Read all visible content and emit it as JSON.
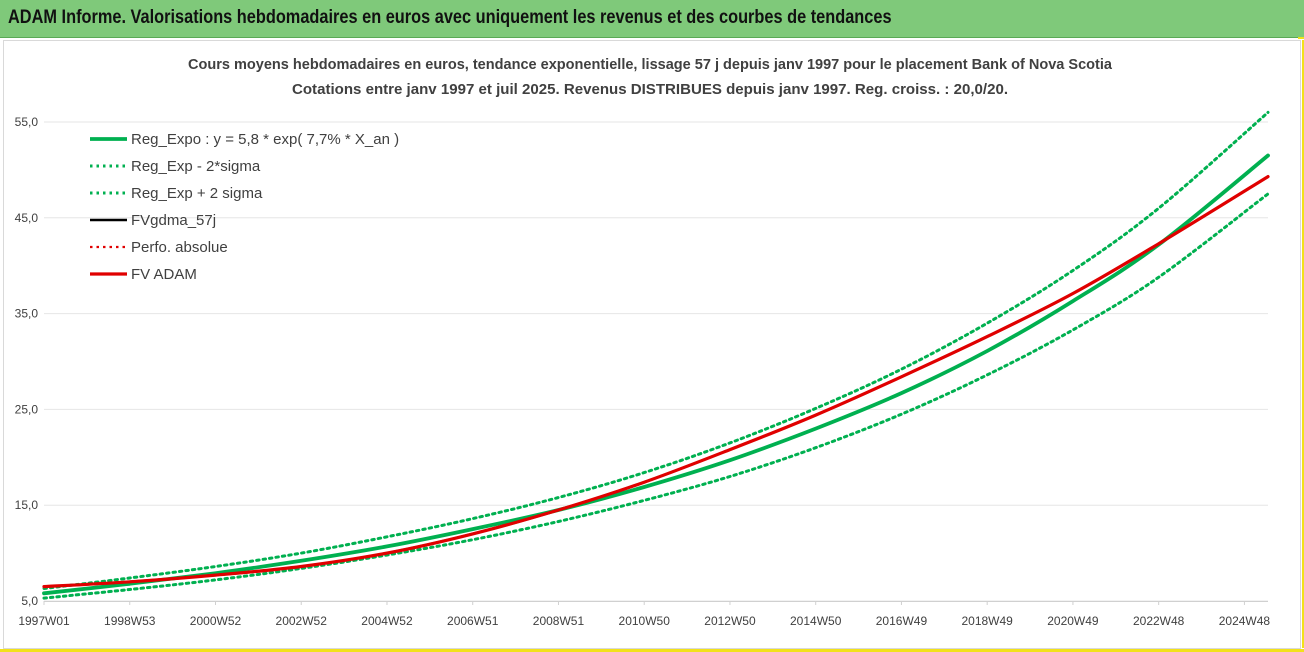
{
  "header": {
    "title": "ADAM Informe. Valorisations hebdomadaires en euros avec uniquement les revenus et des courbes de tendances"
  },
  "colors": {
    "header_bg": "#7fc97a",
    "accent_yellow": "#f2e11a",
    "green": "#00b050",
    "red": "#e00000",
    "black": "#000000",
    "grid": "#e6e6e6"
  },
  "chart_data": {
    "type": "line",
    "title": "Cours moyens hebdomadaires en euros, tendance exponentielle, lissage 57 j depuis janv 1997 pour le placement Bank of Nova Scotia",
    "subtitle": "Cotations entre janv 1997 et juil 2025. Revenus DISTRIBUES depuis janv 1997. Reg. croiss. : 20,0/20.",
    "xlabel": "",
    "ylabel": "",
    "x_range": [
      1997.0,
      2025.55
    ],
    "ylim": [
      5.0,
      55.0
    ],
    "y_ticks": [
      "5,0",
      "15,0",
      "25,0",
      "35,0",
      "45,0",
      "55,0"
    ],
    "x_ticks": [
      {
        "label": "1997W01",
        "year": 1997.0
      },
      {
        "label": "1998W53",
        "year": 1999.0
      },
      {
        "label": "2000W52",
        "year": 2001.0
      },
      {
        "label": "2002W52",
        "year": 2003.0
      },
      {
        "label": "2004W52",
        "year": 2005.0
      },
      {
        "label": "2006W51",
        "year": 2007.0
      },
      {
        "label": "2008W51",
        "year": 2009.0
      },
      {
        "label": "2010W50",
        "year": 2011.0
      },
      {
        "label": "2012W50",
        "year": 2013.0
      },
      {
        "label": "2014W50",
        "year": 2015.0
      },
      {
        "label": "2016W49",
        "year": 2017.0
      },
      {
        "label": "2018W49",
        "year": 2019.0
      },
      {
        "label": "2020W49",
        "year": 2021.0
      },
      {
        "label": "2022W48",
        "year": 2023.0
      },
      {
        "label": "2024W48",
        "year": 2025.0
      }
    ],
    "legend_position": "top-left",
    "grid": true,
    "series": [
      {
        "name": "Reg_Expo : y = 5,8 * exp( 7,7% *  X_an )",
        "style": "solid",
        "color": "#00b050",
        "x": [
          1997,
          1999,
          2001,
          2003,
          2005,
          2007,
          2009,
          2011,
          2013,
          2015,
          2017,
          2019,
          2021,
          2023,
          2025.55
        ],
        "values": [
          5.8,
          6.8,
          7.9,
          9.2,
          10.7,
          12.5,
          14.5,
          16.9,
          19.7,
          23.0,
          26.7,
          31.1,
          36.3,
          42.2,
          51.5
        ]
      },
      {
        "name": "Reg_Exp - 2*sigma",
        "style": "dotted",
        "color": "#00b050",
        "x": [
          1997,
          1999,
          2001,
          2003,
          2005,
          2007,
          2009,
          2011,
          2013,
          2015,
          2017,
          2019,
          2021,
          2023,
          2025.55
        ],
        "values": [
          5.3,
          6.2,
          7.2,
          8.4,
          9.8,
          11.4,
          13.3,
          15.5,
          18.0,
          21.0,
          24.5,
          28.6,
          33.3,
          38.8,
          47.5
        ]
      },
      {
        "name": "Reg_Exp + 2 sigma",
        "style": "dotted",
        "color": "#00b050",
        "x": [
          1997,
          1999,
          2001,
          2003,
          2005,
          2007,
          2009,
          2011,
          2013,
          2015,
          2017,
          2019,
          2021,
          2023,
          2025.55
        ],
        "values": [
          6.3,
          7.4,
          8.6,
          10.0,
          11.7,
          13.6,
          15.8,
          18.4,
          21.5,
          25.1,
          29.2,
          34.0,
          39.5,
          46.0,
          56.0
        ]
      },
      {
        "name": "FVgdma_57j",
        "style": "solid",
        "color": "#000000",
        "x": [
          1997,
          1999,
          2001,
          2003,
          2005,
          2007,
          2009,
          2011,
          2013,
          2015,
          2017,
          2019,
          2021,
          2023,
          2025.55
        ],
        "values": [
          6.5,
          7.0,
          7.7,
          8.6,
          10.0,
          12.0,
          14.5,
          17.4,
          20.8,
          24.4,
          28.4,
          32.6,
          37.1,
          42.3,
          49.3
        ]
      },
      {
        "name": "Perfo. absolue",
        "style": "dotted",
        "color": "#e00000",
        "x": [
          1997,
          1999,
          2001,
          2003,
          2005,
          2007,
          2009,
          2011,
          2013,
          2015,
          2017,
          2019,
          2021,
          2023,
          2025.55
        ],
        "values": [
          6.5,
          7.0,
          7.7,
          8.6,
          10.0,
          12.0,
          14.5,
          17.4,
          20.8,
          24.4,
          28.4,
          32.6,
          37.1,
          42.3,
          49.3
        ]
      },
      {
        "name": "FV ADAM",
        "style": "solid",
        "color": "#e00000",
        "x": [
          1997,
          1999,
          2001,
          2003,
          2005,
          2007,
          2009,
          2011,
          2013,
          2015,
          2017,
          2019,
          2021,
          2023,
          2025.55
        ],
        "values": [
          6.5,
          7.0,
          7.7,
          8.6,
          10.0,
          12.0,
          14.5,
          17.4,
          20.8,
          24.4,
          28.4,
          32.6,
          37.1,
          42.3,
          49.3
        ]
      }
    ]
  }
}
